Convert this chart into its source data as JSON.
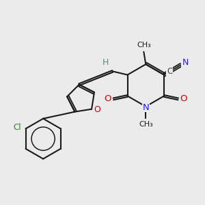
{
  "bg_color": "#ebebeb",
  "bond_color": "#1a1a1a",
  "atom_colors": {
    "O": "#cc0000",
    "N": "#2222cc",
    "Cl": "#228822",
    "C": "#444444",
    "H": "#4a8a9a",
    "default": "#1a1a1a"
  },
  "figsize": [
    3.0,
    3.0
  ],
  "dpi": 100
}
